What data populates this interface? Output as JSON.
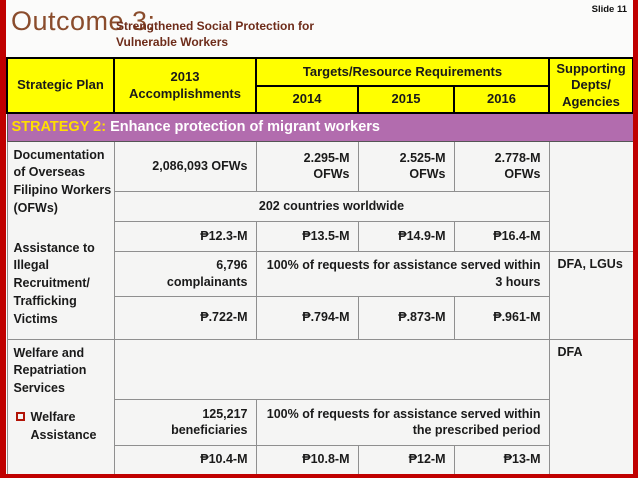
{
  "slide": {
    "title": "Outcome 3:",
    "subtitle": "Strengthened Social Protection for Vulnerable Workers",
    "slide_number": "Slide 11"
  },
  "colors": {
    "frame_red": "#c00000",
    "header_yellow": "#ffff00",
    "strategy_purple": "#b26cae",
    "strategy_label_yellow": "#ffdf00",
    "title_brown": "#8a4c2c",
    "subtitle_maroon": "#6e2c1a",
    "checkbox_red": "#b21407"
  },
  "table": {
    "headers": {
      "strategic_plan": "Strategic Plan",
      "accomplishments_2013": "2013 Accomplishments",
      "targets": "Targets/Resource Requirements",
      "year_2014": "2014",
      "year_2015": "2015",
      "year_2016": "2016",
      "supporting": "Supporting Depts/ Agencies"
    },
    "strategy": {
      "label": "STRATEGY 2:",
      "text": " Enhance protection of migrant workers"
    },
    "programs": {
      "documentation": "Documentation of Overseas Filipino Workers (OFWs)",
      "assistance": "Assistance to Illegal Recruitment/ Trafficking Victims",
      "welfare": "Welfare and Repatriation Services",
      "welfare_item": "Welfare Assistance"
    },
    "rows": {
      "r1": {
        "a2013": "2,086,093 OFWs",
        "t2014": "2.295-M OFWs",
        "t2015": "2.525-M OFWs",
        "t2016": "2.778-M OFWs"
      },
      "r2": {
        "span": "202 countries worldwide"
      },
      "r3": {
        "a2013": "₱12.3-M",
        "t2014": "₱13.5-M",
        "t2015": "₱14.9-M",
        "t2016": "₱16.4-M"
      },
      "r4": {
        "a2013": "6,796 complainants",
        "span": "100% of requests for assistance served within 3 hours",
        "support": "DFA, LGUs"
      },
      "r5": {
        "a2013": "₱.722-M",
        "t2014": "₱.794-M",
        "t2015": "₱.873-M",
        "t2016": "₱.961-M"
      },
      "r6": {
        "support": "DFA"
      },
      "r7": {
        "a2013": "125,217 beneficiaries",
        "span": "100% of requests for assistance served within the prescribed period"
      },
      "r8": {
        "a2013": "₱10.4-M",
        "t2014": "₱10.8-M",
        "t2015": "₱12-M",
        "t2016": "₱13-M"
      }
    }
  }
}
